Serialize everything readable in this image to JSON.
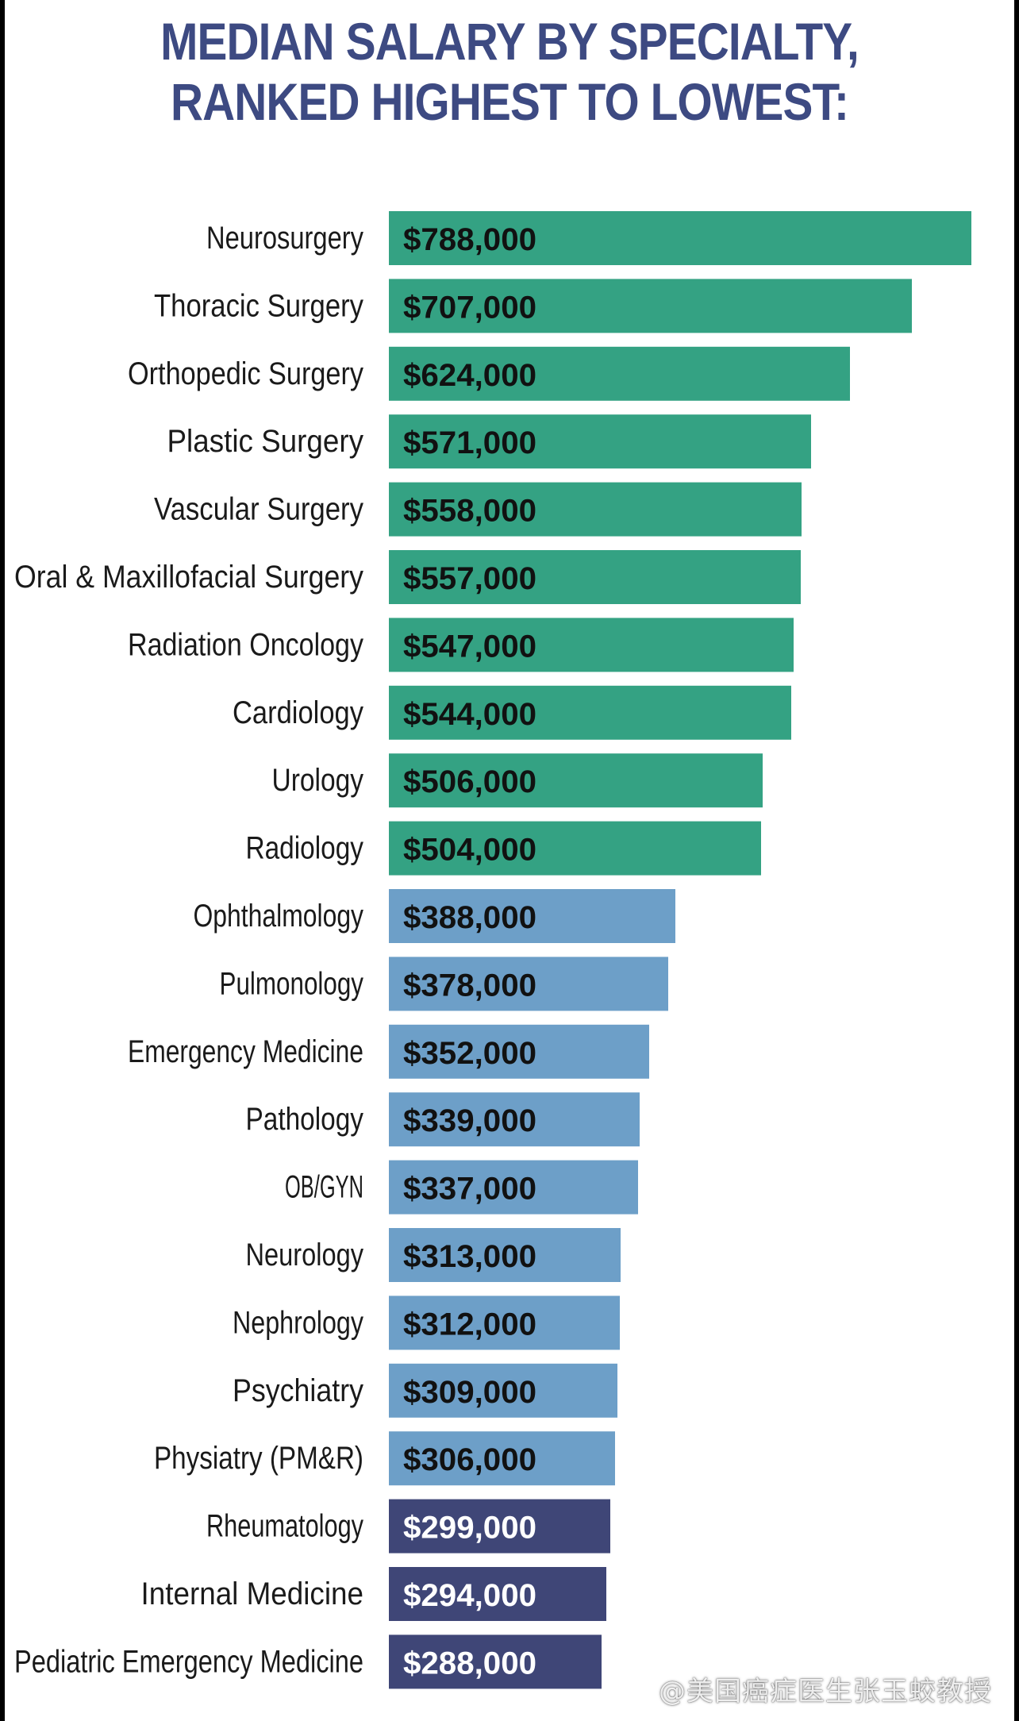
{
  "chart_data": {
    "type": "bar",
    "orientation": "horizontal",
    "title": "MEDIAN SALARY BY SPECIALTY, RANKED HIGHEST TO LOWEST:",
    "title_lines": [
      "MEDIAN SALARY BY SPECIALTY,",
      "RANKED HIGHEST TO LOWEST:"
    ],
    "xlabel": "",
    "ylabel": "",
    "xlim": [
      0,
      788000
    ],
    "grid": false,
    "legend": "none",
    "categories": [
      "Neurosurgery",
      "Thoracic Surgery",
      "Orthopedic Surgery",
      "Plastic Surgery",
      "Vascular Surgery",
      "Oral & Maxillofacial Surgery",
      "Radiation Oncology",
      "Cardiology",
      "Urology",
      "Radiology",
      "Ophthalmology",
      "Pulmonology",
      "Emergency Medicine",
      "Pathology",
      "OB/GYN",
      "Neurology",
      "Nephrology",
      "Psychiatry",
      "Physiatry (PM&R)",
      "Rheumatology",
      "Internal Medicine",
      "Pediatric Emergency Medicine"
    ],
    "values": [
      788000,
      707000,
      624000,
      571000,
      558000,
      557000,
      547000,
      544000,
      506000,
      504000,
      388000,
      378000,
      352000,
      339000,
      337000,
      313000,
      312000,
      309000,
      306000,
      299000,
      294000,
      288000
    ],
    "value_labels": [
      "$788,000",
      "$707,000",
      "$624,000",
      "$571,000",
      "$558,000",
      "$557,000",
      "$547,000",
      "$544,000",
      "$506,000",
      "$504,000",
      "$388,000",
      "$378,000",
      "$352,000",
      "$339,000",
      "$337,000",
      "$313,000",
      "$312,000",
      "$309,000",
      "$306,000",
      "$299,000",
      "$294,000",
      "$288,000"
    ],
    "groups": [
      "high",
      "high",
      "high",
      "high",
      "high",
      "high",
      "high",
      "high",
      "high",
      "high",
      "mid",
      "mid",
      "mid",
      "mid",
      "mid",
      "mid",
      "mid",
      "mid",
      "mid",
      "low",
      "low",
      "low"
    ],
    "group_colors": {
      "high": "#34a283",
      "mid": "#6d9fc8",
      "low": "#3f4677"
    },
    "value_text_colors": {
      "high": "#111111",
      "mid": "#111111",
      "low": "#ffffff"
    }
  },
  "colors": {
    "title": "#3d4a82",
    "background": "#ffffff"
  },
  "watermark": "@美国癌症医生张玉蛟教授"
}
